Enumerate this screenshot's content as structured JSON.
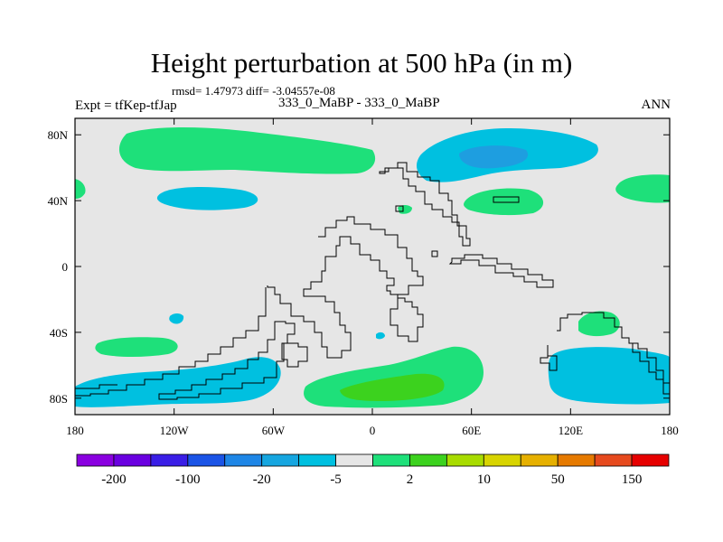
{
  "title": "Height perturbation at 500 hPa (in m)",
  "stats": "rmsd= 1.47973 diff= -3.04557e-08",
  "left_label": "Expt = tfKep-tfJap",
  "center_label": "333_0_MaBP - 333_0_MaBP",
  "right_label": "ANN",
  "map": {
    "lon_range": [
      -180,
      180
    ],
    "lat_range": [
      -90,
      90
    ],
    "x_ticks": [
      {
        "value": -180,
        "label": "180"
      },
      {
        "value": -120,
        "label": "120W"
      },
      {
        "value": -60,
        "label": "60W"
      },
      {
        "value": 0,
        "label": "0"
      },
      {
        "value": 60,
        "label": "60E"
      },
      {
        "value": 120,
        "label": "120E"
      },
      {
        "value": 180,
        "label": "180"
      }
    ],
    "y_ticks": [
      {
        "value": 80,
        "label": "80N"
      },
      {
        "value": 40,
        "label": "40N"
      },
      {
        "value": 0,
        "label": "0"
      },
      {
        "value": -40,
        "label": "40S"
      },
      {
        "value": -80,
        "label": "80S"
      }
    ]
  },
  "colorbar": {
    "colors": [
      "#8a00e0",
      "#6a00e0",
      "#3a1ee6",
      "#1b54e6",
      "#1e86e6",
      "#16a6e0",
      "#00c0e0",
      "#e6e6e6",
      "#1ee07a",
      "#3cd21e",
      "#a8dc00",
      "#d8d400",
      "#e6b000",
      "#e67a00",
      "#e64a1e",
      "#e60000"
    ],
    "labels": [
      {
        "boundary": 1,
        "text": "-200"
      },
      {
        "boundary": 3,
        "text": "-100"
      },
      {
        "boundary": 5,
        "text": "-20"
      },
      {
        "boundary": 7,
        "text": "-5"
      },
      {
        "boundary": 9,
        "text": "2"
      },
      {
        "boundary": 11,
        "text": "10"
      },
      {
        "boundary": 13,
        "text": "50"
      },
      {
        "boundary": 15,
        "text": "150"
      }
    ]
  },
  "colors": {
    "background": "#e6e6e6",
    "cyan": "#00c0e0",
    "blue": "#1e9ee0",
    "green": "#1ee07a",
    "dark_green": "#3cd21e"
  }
}
